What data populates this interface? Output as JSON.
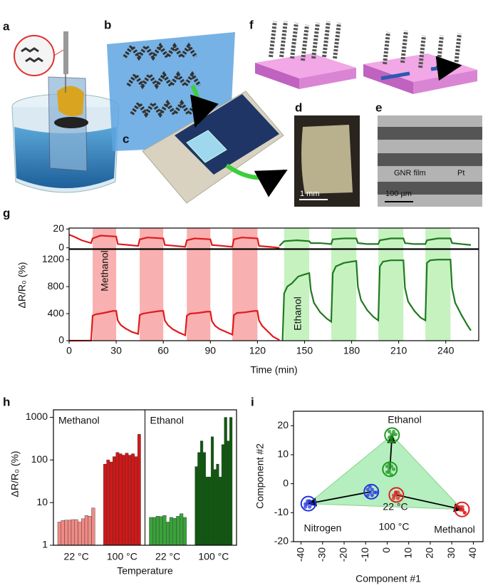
{
  "figure": {
    "panel_labels": [
      "a",
      "b",
      "c",
      "d",
      "e",
      "f",
      "g",
      "h",
      "i"
    ],
    "scale_bar_d": "1 mm",
    "film_label": "GNR film",
    "electrode_label": "Pt",
    "scale_bar_e": "100 µm"
  },
  "chart_data": [
    {
      "type": "line",
      "xlim": [
        0,
        261
      ],
      "ylim": [
        -1,
        21
      ],
      "yticks": [
        0,
        20
      ],
      "series": [
        {
          "color": "#e01b1b",
          "x": [
            0,
            3,
            8,
            14,
            15,
            20,
            30,
            31,
            38,
            44,
            45,
            50,
            60,
            61,
            68,
            74,
            75,
            80,
            90,
            91,
            98,
            104,
            105,
            110,
            120,
            121,
            128,
            134
          ],
          "values": [
            14,
            12,
            8,
            5,
            10,
            13,
            12,
            4,
            3,
            2,
            9,
            11,
            10,
            3,
            2,
            1,
            8,
            10,
            9,
            3,
            2,
            1,
            9,
            11,
            10,
            2,
            1,
            0
          ]
        },
        {
          "color": "#1f7a1f",
          "x": [
            134,
            137,
            145,
            153,
            154,
            160,
            167,
            168,
            175,
            183,
            184,
            190,
            197,
            198,
            205,
            213,
            214,
            220,
            227,
            228,
            235,
            243,
            244,
            250,
            256
          ],
          "values": [
            2,
            7,
            8,
            7,
            5,
            5,
            4,
            9,
            10,
            10,
            5,
            4,
            4,
            8,
            10,
            10,
            5,
            4,
            4,
            8,
            10,
            10,
            5,
            4,
            3
          ]
        }
      ]
    },
    {
      "type": "line",
      "xlabel": "Time (min)",
      "ylabel": "ΔR/R₀ (%)",
      "xlim": [
        0,
        261
      ],
      "xticks": [
        0,
        30,
        60,
        90,
        120,
        150,
        180,
        210,
        240
      ],
      "ylim": [
        0,
        1350
      ],
      "yticks": [
        0,
        400,
        800,
        1200
      ],
      "annotations": [
        "Methanol",
        "Ethanol"
      ],
      "shaded": [
        {
          "range": [
            15,
            30
          ],
          "color": "#f9b0b0"
        },
        {
          "range": [
            45,
            60
          ],
          "color": "#f9b0b0"
        },
        {
          "range": [
            75,
            90
          ],
          "color": "#f9b0b0"
        },
        {
          "range": [
            104,
            120
          ],
          "color": "#f9b0b0"
        },
        {
          "range": [
            137,
            153
          ],
          "color": "#c6f2c0"
        },
        {
          "range": [
            167,
            183
          ],
          "color": "#c6f2c0"
        },
        {
          "range": [
            197,
            213
          ],
          "color": "#c6f2c0"
        },
        {
          "range": [
            227,
            243
          ],
          "color": "#c6f2c0"
        }
      ],
      "series": [
        {
          "color": "#e01b1b",
          "x": [
            0,
            14,
            15,
            17,
            22,
            28,
            30,
            31,
            33,
            36,
            40,
            44,
            45,
            47,
            52,
            58,
            60,
            61,
            63,
            66,
            70,
            74,
            75,
            77,
            82,
            88,
            90,
            91,
            93,
            96,
            100,
            104,
            105,
            107,
            112,
            118,
            120,
            121,
            123,
            126,
            130,
            134
          ],
          "values": [
            0,
            2,
            370,
            390,
            410,
            440,
            440,
            300,
            230,
            180,
            130,
            100,
            380,
            400,
            420,
            440,
            440,
            300,
            230,
            170,
            120,
            80,
            370,
            400,
            410,
            430,
            430,
            290,
            220,
            170,
            130,
            90,
            380,
            410,
            420,
            440,
            440,
            300,
            220,
            150,
            60,
            10
          ]
        },
        {
          "color": "#1f7a1f",
          "x": [
            136,
            137,
            139,
            142,
            146,
            150,
            153,
            154,
            156,
            160,
            164,
            167,
            168,
            170,
            175,
            180,
            183,
            184,
            186,
            190,
            194,
            197,
            198,
            200,
            205,
            210,
            213,
            214,
            216,
            220,
            224,
            227,
            228,
            230,
            235,
            240,
            243,
            244,
            246,
            250,
            254,
            256
          ],
          "values": [
            0,
            700,
            800,
            850,
            950,
            980,
            1000,
            750,
            560,
            420,
            330,
            280,
            1000,
            1100,
            1150,
            1170,
            1180,
            800,
            600,
            450,
            350,
            300,
            1100,
            1170,
            1190,
            1190,
            1190,
            780,
            580,
            440,
            340,
            300,
            1150,
            1190,
            1200,
            1200,
            1200,
            780,
            560,
            380,
            220,
            150
          ]
        }
      ]
    },
    {
      "type": "bar",
      "log_scale": true,
      "ylim": [
        1,
        1500
      ],
      "yticks": [
        1,
        10,
        100,
        1000
      ],
      "xlabel": "Temperature",
      "ylabel": "ΔR/R₀ (%)",
      "sections": [
        "Methanol",
        "Ethanol"
      ],
      "groups": [
        {
          "label": "22 °C",
          "color": "#f08a84",
          "values": [
            3.5,
            3.8,
            3.9,
            3.9,
            4,
            4,
            3.5,
            4.2,
            5,
            4.8,
            7.5
          ]
        },
        {
          "label": "100 °C",
          "color": "#d01818",
          "values": [
            80,
            100,
            90,
            120,
            150,
            140,
            130,
            145,
            130,
            140,
            120,
            400
          ]
        },
        {
          "label": "22 °C",
          "color": "#3aa33a",
          "values": [
            4.5,
            4.5,
            4.8,
            4.7,
            5,
            3.5,
            4.5,
            4.3,
            4.8,
            5.5,
            4.5
          ]
        },
        {
          "label": "100 °C",
          "color": "#0f5a0f",
          "values": [
            70,
            150,
            280,
            150,
            40,
            40,
            350,
            60,
            80,
            40,
            230,
            1000,
            280,
            1000
          ]
        }
      ]
    },
    {
      "type": "scatter",
      "xlabel": "Component #1",
      "ylabel": "Component #2",
      "xlim": [
        -43.5,
        44.5
      ],
      "xticks": [
        -40,
        -30,
        -20,
        -10,
        0,
        10,
        20,
        30,
        40
      ],
      "ylim": [
        -20,
        25
      ],
      "yticks": [
        -20,
        -10,
        0,
        10,
        20
      ],
      "labels": [
        "Ethanol",
        "Nitrogen",
        "22 °C",
        "100 °C",
        "Methanol"
      ],
      "clusters": [
        {
          "color": "#2233dd",
          "x": [
            -8,
            -7,
            -9,
            -6,
            -8,
            -7,
            -9,
            -5
          ],
          "y": [
            -3,
            -2,
            -4,
            -3,
            -1,
            -4,
            -2,
            -3
          ]
        },
        {
          "color": "#2233dd",
          "x": [
            -37,
            -36,
            -38,
            -35,
            -37,
            -36,
            -38,
            -36
          ],
          "y": [
            -7,
            -6,
            -8,
            -7,
            -6,
            -8,
            -7,
            -6
          ]
        },
        {
          "color": "#1f9a1f",
          "x": [
            1,
            2,
            0,
            3,
            1,
            2,
            0,
            1
          ],
          "y": [
            5,
            6,
            4,
            5,
            7,
            3,
            6,
            4
          ]
        },
        {
          "color": "#1f9a1f",
          "x": [
            2,
            1,
            3,
            2,
            4,
            1,
            2,
            3
          ],
          "y": [
            17,
            16,
            18,
            15,
            17,
            18,
            16,
            17
          ]
        },
        {
          "color": "#e02020",
          "x": [
            4,
            5,
            3,
            6,
            4,
            5,
            3,
            4
          ],
          "y": [
            -4,
            -3,
            -5,
            -4,
            -3,
            -5,
            -4,
            -3
          ]
        },
        {
          "color": "#e02020",
          "x": [
            35,
            34,
            36,
            35,
            33,
            36,
            34,
            35
          ],
          "y": [
            -9,
            -8,
            -10,
            -9,
            -8,
            -10,
            -9,
            -8
          ]
        }
      ]
    }
  ]
}
